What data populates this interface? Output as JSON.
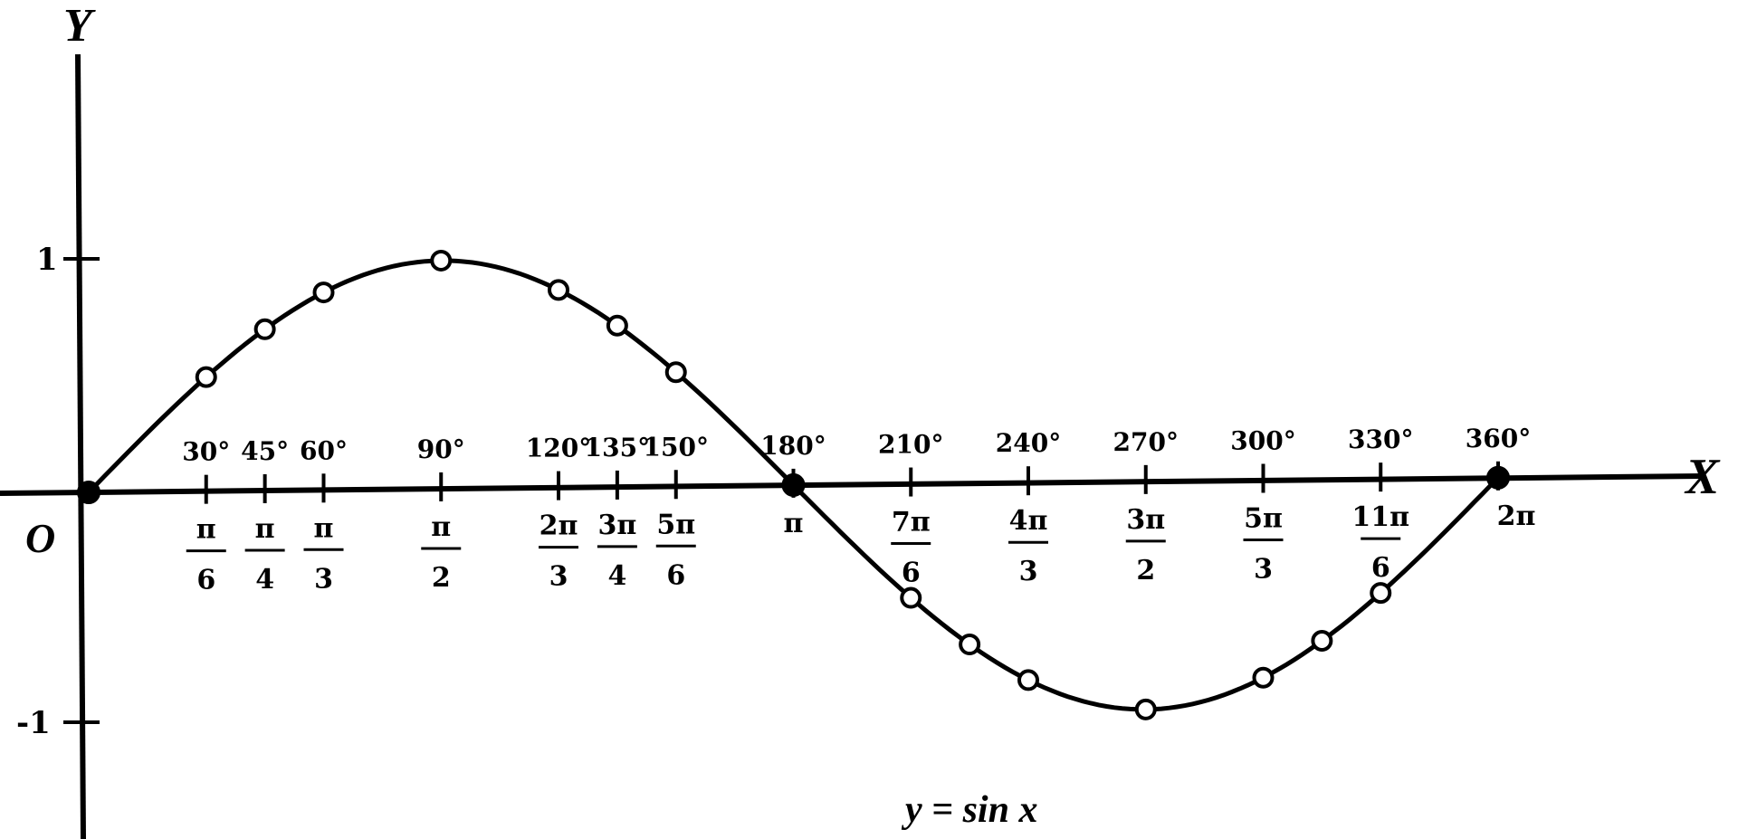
{
  "chart_data": {
    "type": "line",
    "title": "",
    "caption": "y = sin x",
    "xlabel": "X",
    "ylabel": "Y",
    "origin_label": "O",
    "xlim_degrees": [
      0,
      360
    ],
    "ylim": [
      -1.3,
      1.9
    ],
    "y_ticks": [
      {
        "value": 1,
        "label": "1"
      },
      {
        "value": -1,
        "label": "-1"
      }
    ],
    "x_ticks": [
      {
        "deg": 30,
        "deg_label": "30°",
        "rad_num": "π",
        "rad_den": "6"
      },
      {
        "deg": 45,
        "deg_label": "45°",
        "rad_num": "π",
        "rad_den": "4"
      },
      {
        "deg": 60,
        "deg_label": "60°",
        "rad_num": "π",
        "rad_den": "3"
      },
      {
        "deg": 90,
        "deg_label": "90°",
        "rad_num": "π",
        "rad_den": "2"
      },
      {
        "deg": 120,
        "deg_label": "120°",
        "rad_num": "2π",
        "rad_den": "3"
      },
      {
        "deg": 135,
        "deg_label": "135°",
        "rad_num": "3π",
        "rad_den": "4"
      },
      {
        "deg": 150,
        "deg_label": "150°",
        "rad_num": "5π",
        "rad_den": "6"
      },
      {
        "deg": 180,
        "deg_label": "180°",
        "rad_label": "π"
      },
      {
        "deg": 210,
        "deg_label": "210°",
        "rad_num": "7π",
        "rad_den": "6"
      },
      {
        "deg": 240,
        "deg_label": "240°",
        "rad_num": "4π",
        "rad_den": "3"
      },
      {
        "deg": 270,
        "deg_label": "270°",
        "rad_num": "3π",
        "rad_den": "2"
      },
      {
        "deg": 300,
        "deg_label": "300°",
        "rad_num": "5π",
        "rad_den": "3"
      },
      {
        "deg": 330,
        "deg_label": "330°",
        "rad_num": "11π",
        "rad_den": "6"
      },
      {
        "deg": 360,
        "deg_label": "360°",
        "rad_label": "2π"
      }
    ],
    "series": [
      {
        "function": "sin",
        "points_deg": [
          0,
          30,
          45,
          60,
          90,
          120,
          135,
          150,
          180,
          210,
          225,
          240,
          270,
          300,
          315,
          330,
          360
        ],
        "values": [
          0,
          0.5,
          0.707,
          0.866,
          1,
          0.866,
          0.707,
          0.5,
          0,
          -0.5,
          -0.707,
          -0.866,
          -1,
          -0.866,
          -0.707,
          -0.5,
          0
        ],
        "filled_points_deg": [
          0,
          180,
          360
        ],
        "color": "#000000"
      }
    ],
    "grid": false
  }
}
